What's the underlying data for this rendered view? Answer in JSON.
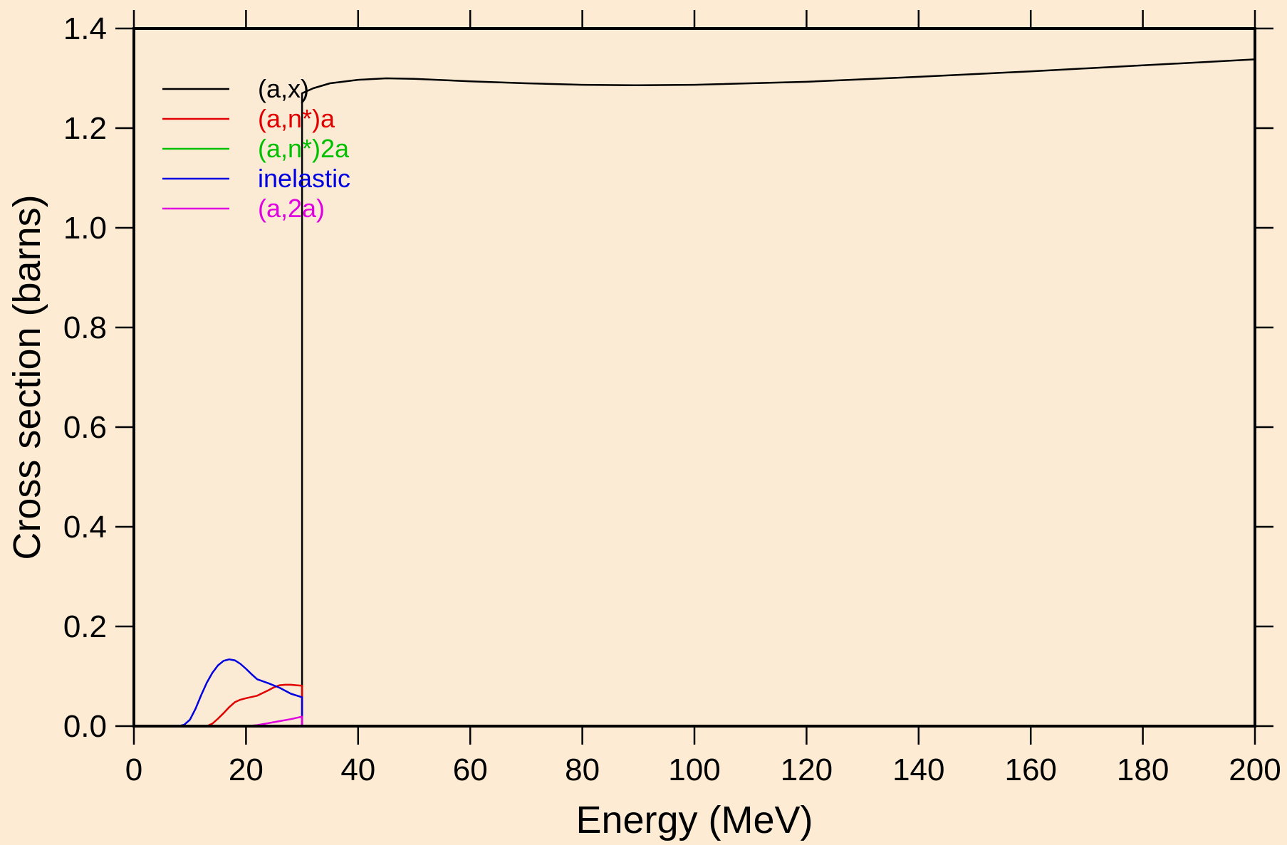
{
  "chart_data": {
    "type": "line",
    "title": "",
    "xlabel": "Energy (MeV)",
    "ylabel": "Cross section (barns)",
    "xlim": [
      0,
      200
    ],
    "ylim": [
      0,
      1.4
    ],
    "xticks": [
      0,
      20,
      40,
      60,
      80,
      100,
      120,
      140,
      160,
      180,
      200
    ],
    "yticks": [
      "0.0",
      "0.2",
      "0.4",
      "0.6",
      "0.8",
      "1.0",
      "1.2",
      "1.4"
    ],
    "grid": false,
    "legend_position": "top-left",
    "background_color": "#fdebd3",
    "plot_background_color": "#fbebd5",
    "series": [
      {
        "name": "(a,x)",
        "color": "#000000",
        "x": [
          0,
          30,
          30,
          32,
          35,
          40,
          45,
          50,
          60,
          70,
          80,
          90,
          100,
          120,
          140,
          160,
          180,
          200
        ],
        "y": [
          0,
          0,
          1.27,
          1.28,
          1.29,
          1.297,
          1.3,
          1.299,
          1.294,
          1.29,
          1.287,
          1.286,
          1.287,
          1.293,
          1.303,
          1.314,
          1.326,
          1.338
        ]
      },
      {
        "name": "(a,n*)a",
        "color": "#e00000",
        "x": [
          0,
          13,
          14,
          15,
          16,
          17,
          18,
          19,
          20,
          22,
          24,
          25,
          26,
          27,
          28,
          29,
          30,
          30
        ],
        "y": [
          0,
          0,
          0.005,
          0.015,
          0.026,
          0.038,
          0.048,
          0.053,
          0.056,
          0.061,
          0.072,
          0.078,
          0.082,
          0.083,
          0.083,
          0.082,
          0.081,
          0
        ]
      },
      {
        "name": "(a,n*)2a",
        "color": "#00c000",
        "x": [
          0,
          30,
          200
        ],
        "y": [
          0,
          0,
          0
        ]
      },
      {
        "name": "inelastic",
        "color": "#0000e0",
        "x": [
          0,
          8,
          9,
          10,
          11,
          12,
          13,
          14,
          15,
          16,
          17,
          18,
          19,
          20,
          21,
          22,
          24,
          26,
          28,
          30,
          30
        ],
        "y": [
          0,
          0,
          0.003,
          0.013,
          0.035,
          0.062,
          0.087,
          0.107,
          0.122,
          0.131,
          0.134,
          0.132,
          0.125,
          0.115,
          0.104,
          0.094,
          0.086,
          0.077,
          0.065,
          0.058,
          0
        ]
      },
      {
        "name": "(a,2a)",
        "color": "#e000e0",
        "x": [
          0,
          20,
          22,
          24,
          26,
          28,
          30,
          30,
          200
        ],
        "y": [
          0,
          0,
          0.002,
          0.006,
          0.01,
          0.014,
          0.019,
          0,
          0
        ]
      }
    ]
  }
}
